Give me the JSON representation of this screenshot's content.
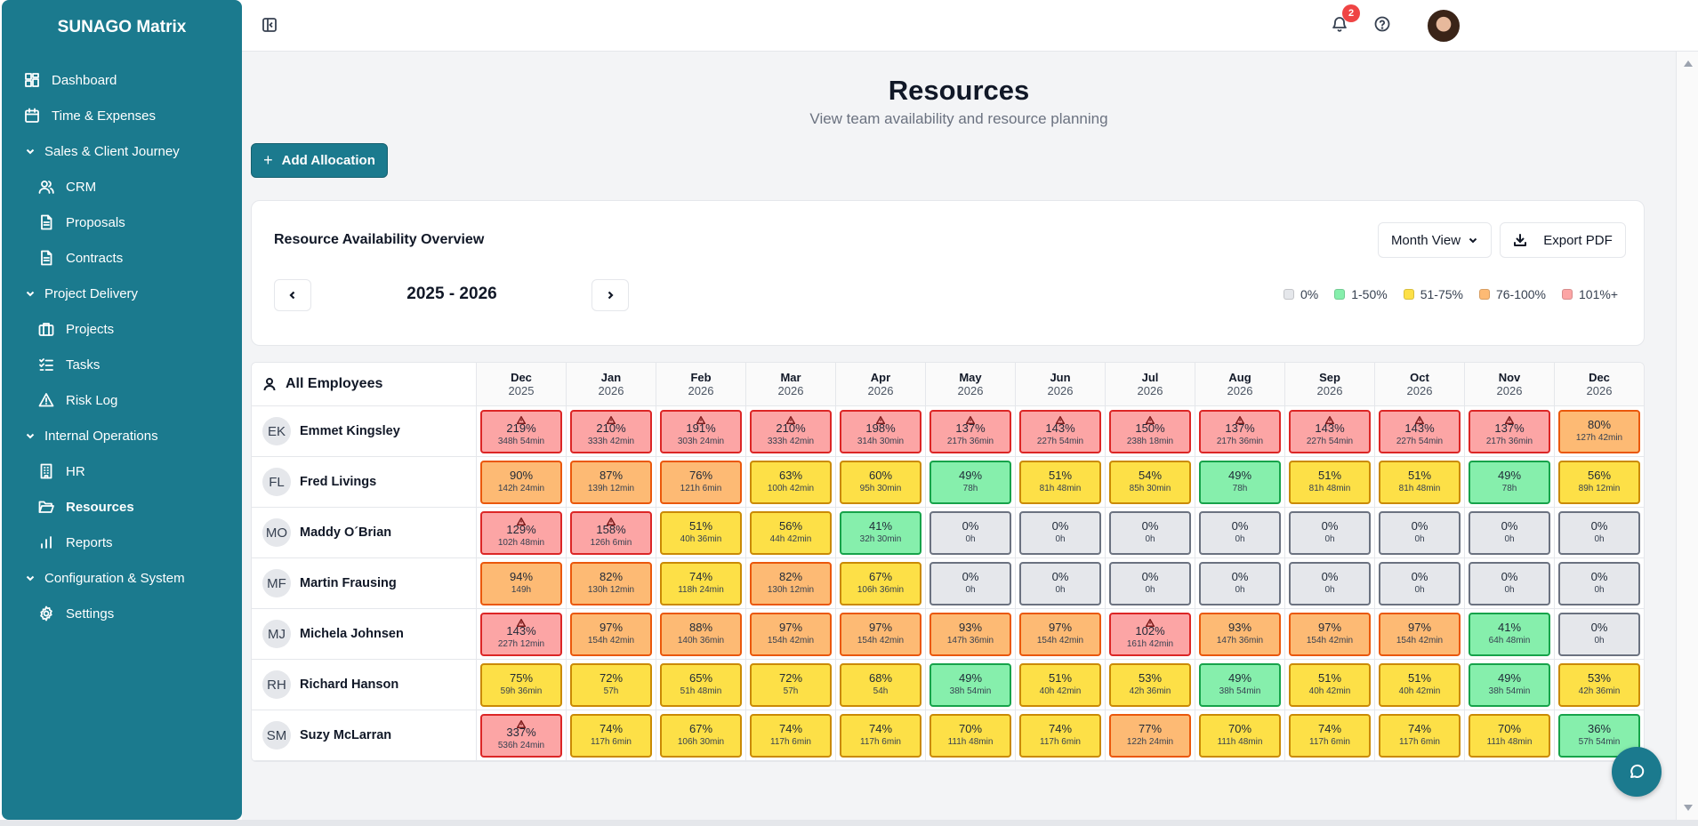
{
  "app": {
    "brand": "SUNAGO Matrix"
  },
  "sidebar": {
    "items": [
      {
        "key": "dashboard",
        "label": "Dashboard",
        "icon": "dashboard-icon",
        "kind": "l1"
      },
      {
        "key": "time",
        "label": "Time & Expenses",
        "icon": "calendar-icon",
        "kind": "l1"
      },
      {
        "key": "sales",
        "label": "Sales & Client Journey",
        "icon": "chevron-down-icon",
        "kind": "group"
      },
      {
        "key": "crm",
        "label": "CRM",
        "icon": "users-icon",
        "kind": "l2"
      },
      {
        "key": "proposals",
        "label": "Proposals",
        "icon": "document-icon",
        "kind": "l2"
      },
      {
        "key": "contracts",
        "label": "Contracts",
        "icon": "document-icon",
        "kind": "l2"
      },
      {
        "key": "delivery",
        "label": "Project Delivery",
        "icon": "chevron-down-icon",
        "kind": "group"
      },
      {
        "key": "projects",
        "label": "Projects",
        "icon": "briefcase-icon",
        "kind": "l2"
      },
      {
        "key": "tasks",
        "label": "Tasks",
        "icon": "checklist-icon",
        "kind": "l2"
      },
      {
        "key": "risk",
        "label": "Risk Log",
        "icon": "warning-icon",
        "kind": "l2"
      },
      {
        "key": "internal",
        "label": "Internal Operations",
        "icon": "chevron-down-icon",
        "kind": "group"
      },
      {
        "key": "hr",
        "label": "HR",
        "icon": "building-icon",
        "kind": "l2"
      },
      {
        "key": "resources",
        "label": "Resources",
        "icon": "folder-open-icon",
        "kind": "l2",
        "active": true
      },
      {
        "key": "reports",
        "label": "Reports",
        "icon": "bar-chart-icon",
        "kind": "l2"
      },
      {
        "key": "config",
        "label": "Configuration & System",
        "icon": "chevron-down-icon",
        "kind": "group"
      },
      {
        "key": "settings",
        "label": "Settings",
        "icon": "gear-icon",
        "kind": "l2"
      }
    ]
  },
  "topbar": {
    "notification_count": "2"
  },
  "page": {
    "title": "Resources",
    "subtitle": "View team availability and resource planning",
    "add_button": "Add Allocation"
  },
  "overview": {
    "title": "Resource Availability Overview",
    "view_select": "Month View",
    "export_label": "Export PDF",
    "range": "2025 - 2026",
    "legend": [
      {
        "label": "0%",
        "level": "zero",
        "color": "#e5e7eb"
      },
      {
        "label": "1-50%",
        "level": "low",
        "color": "#86efac"
      },
      {
        "label": "51-75%",
        "level": "mid",
        "color": "#fde047"
      },
      {
        "label": "76-100%",
        "level": "high",
        "color": "#fdba74"
      },
      {
        "label": "101%+",
        "level": "over",
        "color": "#fca5a5"
      }
    ]
  },
  "grid": {
    "first_header": "All Employees",
    "months": [
      {
        "m": "Dec",
        "y": "2025"
      },
      {
        "m": "Jan",
        "y": "2026"
      },
      {
        "m": "Feb",
        "y": "2026"
      },
      {
        "m": "Mar",
        "y": "2026"
      },
      {
        "m": "Apr",
        "y": "2026"
      },
      {
        "m": "May",
        "y": "2026"
      },
      {
        "m": "Jun",
        "y": "2026"
      },
      {
        "m": "Jul",
        "y": "2026"
      },
      {
        "m": "Aug",
        "y": "2026"
      },
      {
        "m": "Sep",
        "y": "2026"
      },
      {
        "m": "Oct",
        "y": "2026"
      },
      {
        "m": "Nov",
        "y": "2026"
      },
      {
        "m": "Dec",
        "y": "2026"
      }
    ],
    "employees": [
      {
        "initials": "EK",
        "name": "Emmet Kingsley",
        "cells": [
          [
            "219%",
            "348h 54min"
          ],
          [
            "210%",
            "333h 42min"
          ],
          [
            "191%",
            "303h 24min"
          ],
          [
            "210%",
            "333h 42min"
          ],
          [
            "198%",
            "314h 30min"
          ],
          [
            "137%",
            "217h 36min"
          ],
          [
            "143%",
            "227h 54min"
          ],
          [
            "150%",
            "238h 18min"
          ],
          [
            "137%",
            "217h 36min"
          ],
          [
            "143%",
            "227h 54min"
          ],
          [
            "143%",
            "227h 54min"
          ],
          [
            "137%",
            "217h 36min"
          ],
          [
            "80%",
            "127h 42min"
          ]
        ]
      },
      {
        "initials": "FL",
        "name": "Fred Livings",
        "cells": [
          [
            "90%",
            "142h 24min"
          ],
          [
            "87%",
            "139h 12min"
          ],
          [
            "76%",
            "121h 6min"
          ],
          [
            "63%",
            "100h 42min"
          ],
          [
            "60%",
            "95h 30min"
          ],
          [
            "49%",
            "78h"
          ],
          [
            "51%",
            "81h 48min"
          ],
          [
            "54%",
            "85h 30min"
          ],
          [
            "49%",
            "78h"
          ],
          [
            "51%",
            "81h 48min"
          ],
          [
            "51%",
            "81h 48min"
          ],
          [
            "49%",
            "78h"
          ],
          [
            "56%",
            "89h 12min"
          ]
        ]
      },
      {
        "initials": "MO",
        "name": "Maddy O´Brian",
        "cells": [
          [
            "129%",
            "102h 48min"
          ],
          [
            "158%",
            "126h 6min"
          ],
          [
            "51%",
            "40h 36min"
          ],
          [
            "56%",
            "44h 42min"
          ],
          [
            "41%",
            "32h 30min"
          ],
          [
            "0%",
            "0h"
          ],
          [
            "0%",
            "0h"
          ],
          [
            "0%",
            "0h"
          ],
          [
            "0%",
            "0h"
          ],
          [
            "0%",
            "0h"
          ],
          [
            "0%",
            "0h"
          ],
          [
            "0%",
            "0h"
          ],
          [
            "0%",
            "0h"
          ]
        ]
      },
      {
        "initials": "MF",
        "name": "Martin Frausing",
        "cells": [
          [
            "94%",
            "149h"
          ],
          [
            "82%",
            "130h 12min"
          ],
          [
            "74%",
            "118h 24min"
          ],
          [
            "82%",
            "130h 12min"
          ],
          [
            "67%",
            "106h 36min"
          ],
          [
            "0%",
            "0h"
          ],
          [
            "0%",
            "0h"
          ],
          [
            "0%",
            "0h"
          ],
          [
            "0%",
            "0h"
          ],
          [
            "0%",
            "0h"
          ],
          [
            "0%",
            "0h"
          ],
          [
            "0%",
            "0h"
          ],
          [
            "0%",
            "0h"
          ]
        ]
      },
      {
        "initials": "MJ",
        "name": "Michela Johnsen",
        "cells": [
          [
            "143%",
            "227h 12min"
          ],
          [
            "97%",
            "154h 42min"
          ],
          [
            "88%",
            "140h 36min"
          ],
          [
            "97%",
            "154h 42min"
          ],
          [
            "97%",
            "154h 42min"
          ],
          [
            "93%",
            "147h 36min"
          ],
          [
            "97%",
            "154h 42min"
          ],
          [
            "102%",
            "161h 42min"
          ],
          [
            "93%",
            "147h 36min"
          ],
          [
            "97%",
            "154h 42min"
          ],
          [
            "97%",
            "154h 42min"
          ],
          [
            "41%",
            "64h 48min"
          ],
          [
            "0%",
            "0h"
          ]
        ]
      },
      {
        "initials": "RH",
        "name": "Richard Hanson",
        "cells": [
          [
            "75%",
            "59h 36min"
          ],
          [
            "72%",
            "57h"
          ],
          [
            "65%",
            "51h 48min"
          ],
          [
            "72%",
            "57h"
          ],
          [
            "68%",
            "54h"
          ],
          [
            "49%",
            "38h 54min"
          ],
          [
            "51%",
            "40h 42min"
          ],
          [
            "53%",
            "42h 36min"
          ],
          [
            "49%",
            "38h 54min"
          ],
          [
            "51%",
            "40h 42min"
          ],
          [
            "51%",
            "40h 42min"
          ],
          [
            "49%",
            "38h 54min"
          ],
          [
            "53%",
            "42h 36min"
          ]
        ]
      },
      {
        "initials": "SM",
        "name": "Suzy McLarran",
        "cells": [
          [
            "337%",
            "536h 24min"
          ],
          [
            "74%",
            "117h 6min"
          ],
          [
            "67%",
            "106h 30min"
          ],
          [
            "74%",
            "117h 6min"
          ],
          [
            "74%",
            "117h 6min"
          ],
          [
            "70%",
            "111h 48min"
          ],
          [
            "74%",
            "117h 6min"
          ],
          [
            "77%",
            "122h 24min"
          ],
          [
            "70%",
            "111h 48min"
          ],
          [
            "74%",
            "117h 6min"
          ],
          [
            "74%",
            "117h 6min"
          ],
          [
            "70%",
            "111h 48min"
          ],
          [
            "36%",
            "57h 54min"
          ]
        ]
      }
    ]
  }
}
